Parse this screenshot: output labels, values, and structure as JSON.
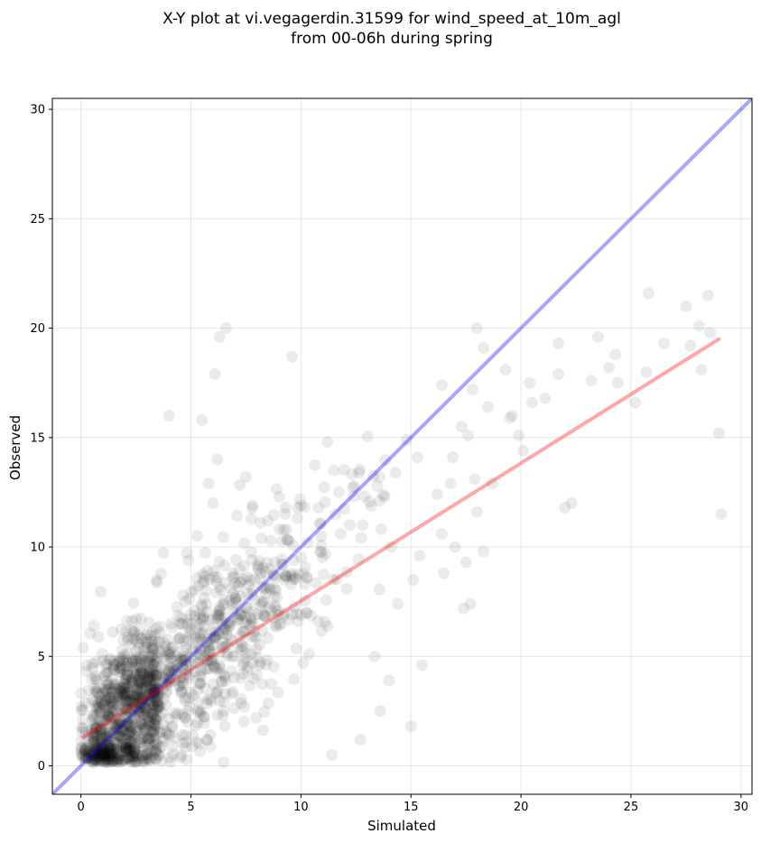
{
  "chart_data": {
    "type": "scatter",
    "title_line1": "X-Y plot at vi.vegagerdin.31599 for wind_speed_at_10m_agl",
    "title_line2": "from 00-06h during spring",
    "xlabel": "Simulated",
    "ylabel": "Observed",
    "xlim": [
      -1.3,
      30.5
    ],
    "ylim": [
      -1.3,
      30.5
    ],
    "xticks": [
      0,
      5,
      10,
      15,
      20,
      25,
      30
    ],
    "yticks": [
      0,
      5,
      10,
      15,
      20,
      25,
      30
    ],
    "grid": true,
    "point_color": "#000000",
    "point_opacity": 0.08,
    "identity_line": {
      "color": "#0000ff",
      "opacity": 0.35,
      "from": [
        -1.3,
        -1.3
      ],
      "to": [
        30.5,
        30.5
      ]
    },
    "fit_line": {
      "color": "#ff0000",
      "opacity": 0.35,
      "from": [
        0.1,
        1.3
      ],
      "to": [
        29.0,
        19.5
      ]
    },
    "outlier_points": [
      [
        0.1,
        5.4
      ],
      [
        4.0,
        16.0
      ],
      [
        5.5,
        15.8
      ],
      [
        6.3,
        19.6
      ],
      [
        6.6,
        20.0
      ],
      [
        6.1,
        17.9
      ],
      [
        9.6,
        18.7
      ],
      [
        6.2,
        14.0
      ],
      [
        7.5,
        13.2
      ],
      [
        5.8,
        12.9
      ],
      [
        6.0,
        12.0
      ],
      [
        11.5,
        13.5
      ],
      [
        12.7,
        1.2
      ],
      [
        11.4,
        0.5
      ],
      [
        15.0,
        1.8
      ],
      [
        13.6,
        2.5
      ],
      [
        14.0,
        3.9
      ],
      [
        15.5,
        4.6
      ],
      [
        14.8,
        14.9
      ],
      [
        15.3,
        14.1
      ],
      [
        16.4,
        17.4
      ],
      [
        16.9,
        14.1
      ],
      [
        17.3,
        15.5
      ],
      [
        17.6,
        15.1
      ],
      [
        17.8,
        17.2
      ],
      [
        18.0,
        20.0
      ],
      [
        18.3,
        19.1
      ],
      [
        18.5,
        16.4
      ],
      [
        19.3,
        18.1
      ],
      [
        19.5,
        15.9
      ],
      [
        19.6,
        16.0
      ],
      [
        20.4,
        17.5
      ],
      [
        20.5,
        16.6
      ],
      [
        19.9,
        15.1
      ],
      [
        20.1,
        14.4
      ],
      [
        21.1,
        16.8
      ],
      [
        21.7,
        17.9
      ],
      [
        21.7,
        19.3
      ],
      [
        22.0,
        11.8
      ],
      [
        22.3,
        12.0
      ],
      [
        23.2,
        17.6
      ],
      [
        23.5,
        19.6
      ],
      [
        24.0,
        18.2
      ],
      [
        24.3,
        18.8
      ],
      [
        24.4,
        17.5
      ],
      [
        25.2,
        16.6
      ],
      [
        25.7,
        18.0
      ],
      [
        25.8,
        21.6
      ],
      [
        26.5,
        19.3
      ],
      [
        27.5,
        21.0
      ],
      [
        27.7,
        19.2
      ],
      [
        28.1,
        20.1
      ],
      [
        28.2,
        18.1
      ],
      [
        28.5,
        21.5
      ],
      [
        28.6,
        19.8
      ],
      [
        29.0,
        15.2
      ],
      [
        29.1,
        11.5
      ],
      [
        17.7,
        7.4
      ],
      [
        17.4,
        7.2
      ],
      [
        16.5,
        8.8
      ],
      [
        18.0,
        11.6
      ],
      [
        18.3,
        9.8
      ],
      [
        17.5,
        9.3
      ],
      [
        16.2,
        12.4
      ],
      [
        16.4,
        10.6
      ],
      [
        16.8,
        12.9
      ],
      [
        17.0,
        10.0
      ],
      [
        17.9,
        13.1
      ],
      [
        18.7,
        12.9
      ],
      [
        15.1,
        8.5
      ],
      [
        15.4,
        9.6
      ],
      [
        14.4,
        7.4
      ],
      [
        14.1,
        10.0
      ],
      [
        13.8,
        12.3
      ],
      [
        14.3,
        13.4
      ],
      [
        12.4,
        12.3
      ],
      [
        11.8,
        10.6
      ],
      [
        12.8,
        11.0
      ],
      [
        10.8,
        11.8
      ],
      [
        10.0,
        11.9
      ],
      [
        9.3,
        11.8
      ],
      [
        8.5,
        11.2
      ],
      [
        7.8,
        11.9
      ]
    ]
  }
}
